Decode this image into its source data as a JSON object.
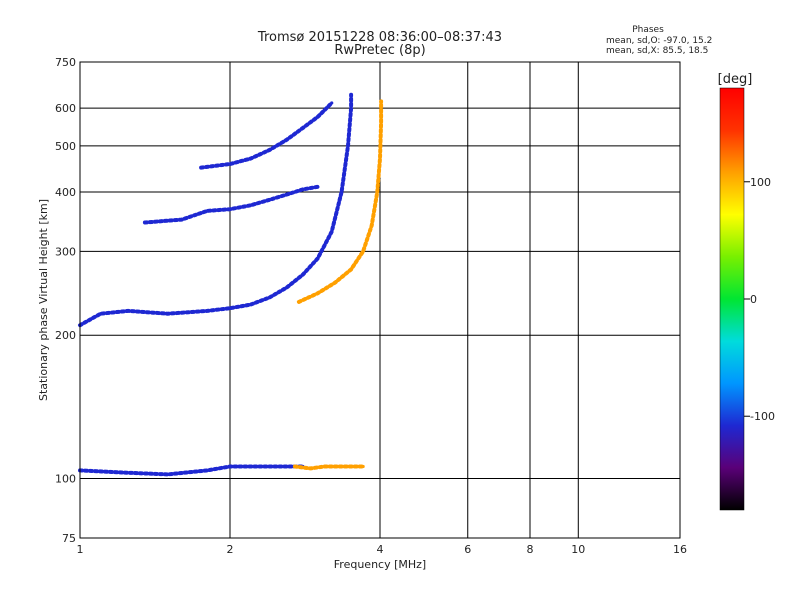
{
  "title": {
    "line1": "Tromsø 20151228 08:36:00–08:37:43",
    "line2": "RwPretec (8p)"
  },
  "stats": {
    "heading": "Phases",
    "line_o": "mean, sd,O:  -97.0,  15.2",
    "line_x": "mean, sd,X:   85.5,  18.5"
  },
  "colorbar": {
    "label": "[deg]",
    "min": -180,
    "max": 180,
    "ticks": [
      100,
      0,
      -100
    ],
    "colors": [
      "#000000",
      "#5a0078",
      "#1e28d2",
      "#0096ff",
      "#00dcdc",
      "#00e632",
      "#78f000",
      "#ffff00",
      "#ffa000",
      "#ff3200",
      "#ff0000"
    ]
  },
  "chart_data": {
    "type": "scatter",
    "xlabel": "Frequency [MHz]",
    "ylabel": "Stationary phase Virtual Height [km]",
    "x_scale": "log",
    "y_scale": "log",
    "xlim": [
      1,
      16
    ],
    "ylim": [
      75,
      750
    ],
    "x_ticks": [
      1,
      2,
      4,
      6,
      8,
      10,
      16
    ],
    "y_ticks": [
      75,
      100,
      200,
      300,
      400,
      500,
      600,
      750
    ],
    "x_grid": [
      2,
      4,
      6,
      8,
      10
    ],
    "y_grid": [
      100,
      200,
      300,
      400,
      500,
      600
    ],
    "grid": true,
    "traces": [
      {
        "name": "",
        "phase": -100,
        "points": [
          [
            1.0,
            210
          ],
          [
            1.1,
            222
          ],
          [
            1.25,
            225
          ],
          [
            1.5,
            222
          ],
          [
            1.8,
            225
          ],
          [
            2.0,
            228
          ],
          [
            2.2,
            232
          ],
          [
            2.4,
            240
          ],
          [
            2.6,
            252
          ],
          [
            2.8,
            268
          ],
          [
            3.0,
            290
          ],
          [
            3.2,
            330
          ],
          [
            3.35,
            400
          ],
          [
            3.45,
            500
          ],
          [
            3.5,
            600
          ],
          [
            3.5,
            640
          ]
        ]
      },
      {
        "name": "",
        "phase": -100,
        "points": [
          [
            1.35,
            345
          ],
          [
            1.6,
            350
          ],
          [
            1.8,
            365
          ],
          [
            2.0,
            368
          ],
          [
            2.2,
            375
          ],
          [
            2.4,
            385
          ],
          [
            2.6,
            395
          ],
          [
            2.8,
            405
          ],
          [
            3.0,
            410
          ]
        ]
      },
      {
        "name": "",
        "phase": -100,
        "points": [
          [
            1.75,
            450
          ],
          [
            2.0,
            458
          ],
          [
            2.2,
            470
          ],
          [
            2.4,
            490
          ],
          [
            2.6,
            515
          ],
          [
            2.8,
            545
          ],
          [
            3.0,
            575
          ],
          [
            3.2,
            615
          ]
        ]
      },
      {
        "name": "",
        "phase": 100,
        "points": [
          [
            2.75,
            235
          ],
          [
            3.0,
            245
          ],
          [
            3.25,
            258
          ],
          [
            3.5,
            275
          ],
          [
            3.7,
            300
          ],
          [
            3.85,
            340
          ],
          [
            3.95,
            400
          ],
          [
            4.0,
            470
          ],
          [
            4.02,
            560
          ],
          [
            4.02,
            620
          ]
        ]
      },
      {
        "name": "",
        "phase": -110,
        "points": [
          [
            1.0,
            104
          ],
          [
            1.2,
            103
          ],
          [
            1.5,
            102
          ],
          [
            1.8,
            104
          ],
          [
            2.0,
            106
          ],
          [
            2.3,
            106
          ],
          [
            2.6,
            106
          ],
          [
            2.8,
            106
          ]
        ]
      },
      {
        "name": "",
        "phase": 100,
        "points": [
          [
            2.7,
            106
          ],
          [
            2.9,
            105
          ],
          [
            3.1,
            106
          ],
          [
            3.4,
            106
          ],
          [
            3.7,
            106
          ]
        ]
      }
    ]
  }
}
